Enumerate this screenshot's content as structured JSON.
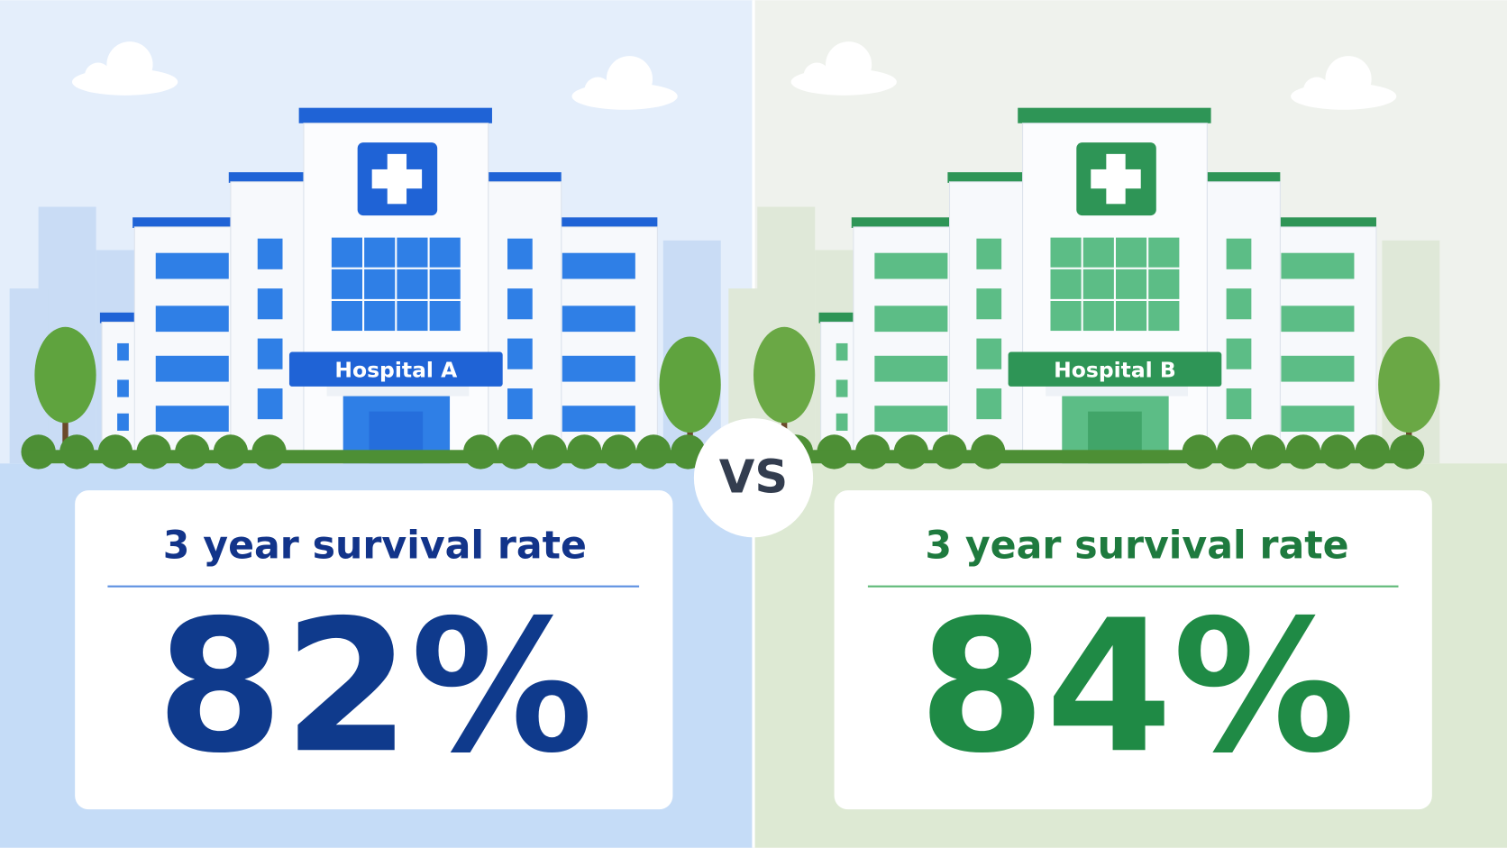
{
  "panels": [
    {
      "hospital": "Hospital A",
      "metric": "3 year survival rate",
      "value": "82%"
    },
    {
      "hospital": "Hospital B",
      "metric": "3 year survival rate",
      "value": "84%"
    }
  ],
  "divider": "VS"
}
